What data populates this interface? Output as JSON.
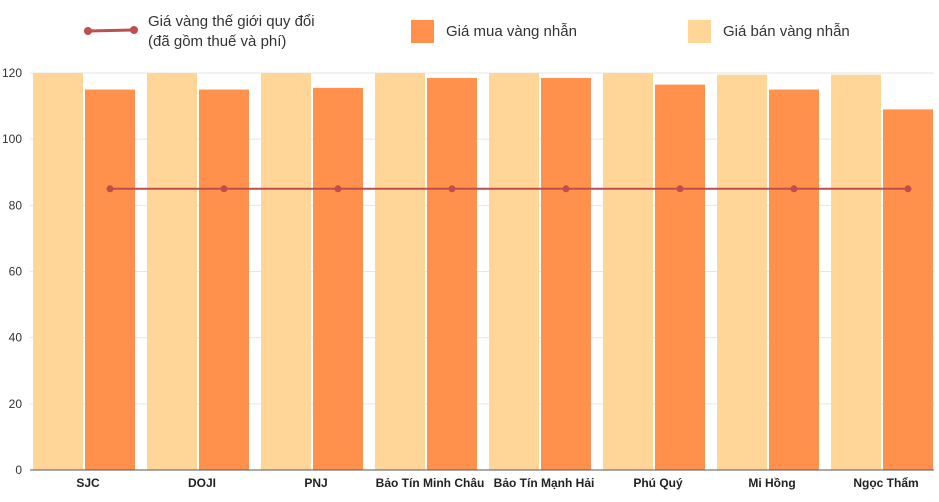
{
  "legend": {
    "line_label_1": "Giá vàng thế giới quy đổi",
    "line_label_2": "(đã gồm thuế và phí)",
    "buy_label": "Giá mua vàng nhẫn",
    "sell_label": "Giá bán vàng nhẫn"
  },
  "colors": {
    "sell": "#FFD598",
    "buy": "#FF914D",
    "line": "#BF4F4F",
    "grid": "#E6E6E6",
    "axis": "#555555"
  },
  "chart_data": {
    "type": "bar",
    "title": "",
    "xlabel": "",
    "ylabel": "",
    "ylim": [
      0,
      120
    ],
    "yticks": [
      0,
      20,
      40,
      60,
      80,
      100,
      120
    ],
    "categories": [
      "SJC",
      "DOJI",
      "PNJ",
      "Bảo Tín Minh Châu",
      "Bảo Tín Mạnh Hải",
      "Phú Quý",
      "Mi Hồng",
      "Ngọc Thẩm"
    ],
    "series": [
      {
        "name": "Giá bán vàng nhẫn",
        "kind": "bar",
        "values": [
          120,
          120,
          120,
          120,
          120,
          120,
          119.5,
          119.5
        ]
      },
      {
        "name": "Giá mua vàng nhẫn",
        "kind": "bar",
        "values": [
          115,
          115,
          115.5,
          118.5,
          118.5,
          116.5,
          115,
          109
        ]
      },
      {
        "name": "Giá vàng thế giới quy đổi (đã gồm thuế và phí)",
        "kind": "line",
        "values": [
          85,
          85,
          85,
          85,
          85,
          85,
          85,
          85
        ]
      }
    ]
  }
}
